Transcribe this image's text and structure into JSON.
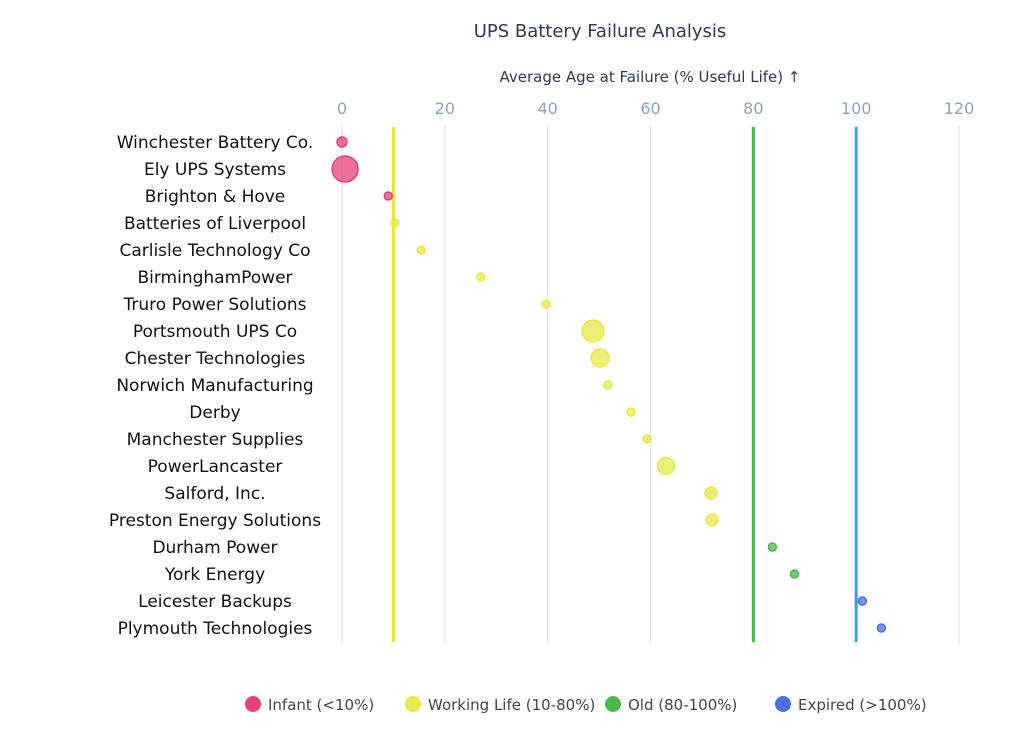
{
  "chart_data": {
    "type": "scatter",
    "title": "UPS Battery Failure Analysis",
    "xlabel": "Average Age at Failure (% Useful Life) ↑",
    "xlim": [
      0,
      120
    ],
    "xticks": [
      0,
      20,
      40,
      60,
      80,
      100,
      120
    ],
    "grid": true,
    "legend_placement": "bottom",
    "categories": [
      "Winchester Battery Co.",
      "Ely UPS Systems",
      "Brighton & Hove",
      "Batteries of Liverpool",
      "Carlisle Technology Co",
      "BirminghamPower",
      "Truro Power Solutions",
      "Portsmouth UPS Co",
      "Chester Technologies",
      "Norwich Manufacturing",
      "Derby",
      "Manchester Supplies",
      "PowerLancaster",
      "Salford, Inc.",
      "Preston Energy Solutions",
      "Durham Power",
      "York Energy",
      "Leicester Backups",
      "Plymouth Technologies"
    ],
    "values": [
      0,
      0.6,
      9,
      10.3,
      15.4,
      27,
      39.7,
      48.8,
      50.2,
      51.7,
      56.2,
      59.3,
      63,
      71.8,
      72,
      83.7,
      88,
      101.2,
      104.9
    ],
    "sizes": [
      5,
      13,
      4,
      4,
      4,
      4,
      4,
      11,
      9,
      4,
      4,
      4,
      8.5,
      6,
      6,
      4,
      4,
      4,
      4
    ],
    "groups": [
      "Infant",
      "Infant",
      "Infant",
      "Working",
      "Working",
      "Working",
      "Working",
      "Working",
      "Working",
      "Working",
      "Working",
      "Working",
      "Working",
      "Working",
      "Working",
      "Old",
      "Old",
      "Expired",
      "Expired"
    ],
    "reference_lines": [
      {
        "value": 10,
        "color": "#e6e640"
      },
      {
        "value": 80,
        "color": "#4cb84c"
      },
      {
        "value": 100,
        "color": "#3fa0e0"
      }
    ],
    "legend": [
      {
        "key": "Infant",
        "label": "Infant (<10%)",
        "color": "#e8417a"
      },
      {
        "key": "Working",
        "label": "Working Life (10-80%)",
        "color": "#e8e84a"
      },
      {
        "key": "Old",
        "label": "Old (80-100%)",
        "color": "#4cb84c"
      },
      {
        "key": "Expired",
        "label": "Expired (>100%)",
        "color": "#4a6fe8"
      }
    ]
  }
}
